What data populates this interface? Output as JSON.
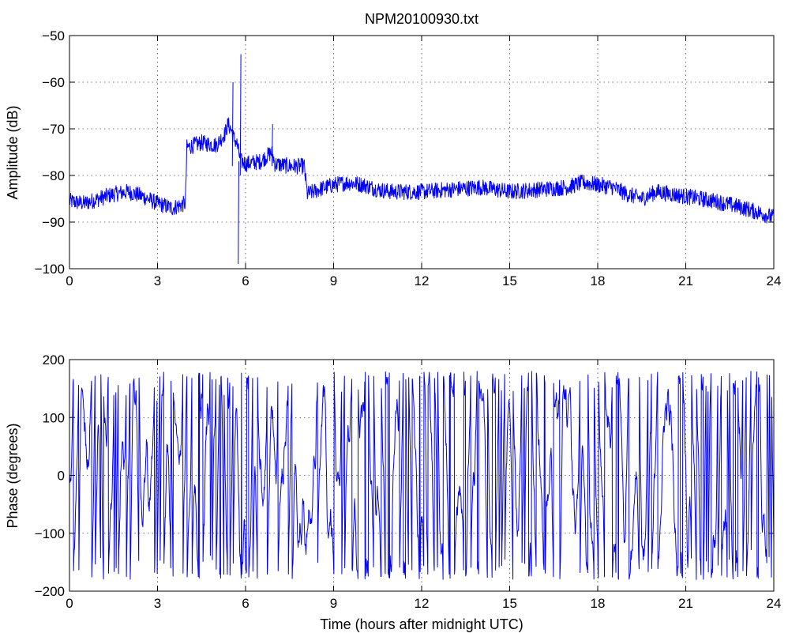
{
  "chart_data": [
    {
      "type": "line",
      "title": "NPM20100930.txt",
      "xlabel": "",
      "ylabel": "Amplitude (dB)",
      "xlim": [
        0,
        24
      ],
      "ylim": [
        -100,
        -50
      ],
      "xticks": [
        "0",
        "3",
        "6",
        "9",
        "12",
        "15",
        "18",
        "21",
        "24"
      ],
      "yticks": [
        "−100",
        "−90",
        "−80",
        "−70",
        "−60",
        "−50"
      ],
      "grid": true,
      "color": "#0000ff",
      "series": [
        {
          "x": [
            0,
            0.5,
            1.0,
            1.5,
            2.0,
            2.5,
            3.0,
            3.5,
            3.95,
            4.0,
            4.5,
            5.0,
            5.3,
            5.4,
            5.5,
            5.6,
            5.7,
            5.8,
            5.85,
            5.9,
            6.0,
            6.5,
            6.9,
            7.0,
            7.5,
            8.0,
            8.1,
            8.5,
            9.0,
            9.5,
            10.0,
            10.5,
            11.0,
            12.0,
            13.0,
            14.0,
            15.0,
            16.0,
            17.0,
            17.5,
            18.0,
            18.5,
            19.0,
            19.5,
            20.0,
            20.5,
            21.0,
            22.0,
            23.0,
            24.0
          ],
          "y": [
            -85.5,
            -86,
            -85,
            -84,
            -83.5,
            -84.5,
            -86,
            -87,
            -86,
            -74,
            -73,
            -73.5,
            -71,
            -69,
            -70,
            -72,
            -73,
            -76,
            -77,
            -77,
            -77.5,
            -77,
            -75,
            -77.5,
            -78,
            -78,
            -84,
            -83,
            -82,
            -81.5,
            -82,
            -83,
            -83.5,
            -83.5,
            -83,
            -82.5,
            -83.5,
            -83,
            -82.5,
            -81.5,
            -82,
            -82.5,
            -84,
            -85,
            -83.5,
            -84,
            -84.5,
            -85.5,
            -87,
            -89
          ]
        }
      ],
      "spikes": [
        {
          "x": 5.55,
          "low": -78,
          "high": -60
        },
        {
          "x": 5.75,
          "low": -99,
          "high": -77
        },
        {
          "x": 5.82,
          "low": -80,
          "high": -54
        },
        {
          "x": 6.9,
          "low": -78,
          "high": -69
        }
      ],
      "noise_db": 3.5
    },
    {
      "type": "line",
      "title": "",
      "xlabel": "Time (hours after midnight UTC)",
      "ylabel": "Phase (degrees)",
      "xlim": [
        0,
        24
      ],
      "ylim": [
        -200,
        200
      ],
      "xticks": [
        "0",
        "3",
        "6",
        "9",
        "12",
        "15",
        "18",
        "21",
        "24"
      ],
      "yticks": [
        "−200",
        "−100",
        "0",
        "100",
        "200"
      ],
      "grid": true,
      "color": "#0000ff",
      "phase_wrap": [
        -180,
        180
      ]
    }
  ]
}
